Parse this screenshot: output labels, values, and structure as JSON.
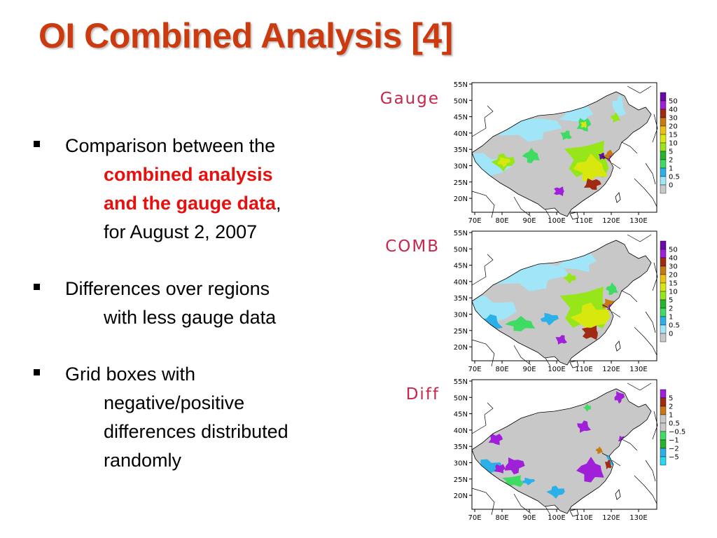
{
  "slide": {
    "title": "OI Combined Analysis [4]",
    "bullets": [
      {
        "first": "Comparison between the",
        "lines": [
          {
            "parts": [
              {
                "text": "combined analysis",
                "hl": true
              }
            ]
          },
          {
            "parts": [
              {
                "text": "and the gauge data",
                "hl": true
              },
              {
                "text": ",",
                "hl": false
              }
            ]
          },
          {
            "parts": [
              {
                "text": "for August 2, 2007",
                "hl": false
              }
            ]
          }
        ]
      },
      {
        "first": "Differences over regions",
        "lines": [
          {
            "parts": [
              {
                "text": "with less gauge data",
                "hl": false
              }
            ]
          }
        ]
      },
      {
        "first": "Grid boxes with",
        "lines": [
          {
            "parts": [
              {
                "text": "negative/positive",
                "hl": false
              }
            ]
          },
          {
            "parts": [
              {
                "text": "differences distributed",
                "hl": false
              }
            ]
          },
          {
            "parts": [
              {
                "text": "randomly",
                "hl": false
              }
            ]
          }
        ]
      }
    ]
  },
  "colors": {
    "title": "#cc3a10",
    "highlight": "#e8100e",
    "panel_label": "#c8264b",
    "land_gray": "#c8c8c8"
  },
  "map": {
    "lat_labels": [
      "55N",
      "50N",
      "45N",
      "40N",
      "35N",
      "30N",
      "25N",
      "20N"
    ],
    "lon_labels": [
      "70E",
      "80E",
      "90E",
      "100E",
      "110E",
      "120E",
      "130E"
    ]
  },
  "panels": [
    {
      "label": "Gauge",
      "legend": {
        "colors": [
          "#6a0aa8",
          "#a01fd8",
          "#a02a12",
          "#c87a12",
          "#eec012",
          "#d8e80e",
          "#96e61a",
          "#26b42a",
          "#3edc62",
          "#2cb0e8",
          "#a0e6f8",
          "#c8c8c8"
        ],
        "labels": [
          "50",
          "40",
          "30",
          "20",
          "15",
          "10",
          "5",
          "2",
          "1",
          "0.5",
          "0"
        ]
      }
    },
    {
      "label": "COMB",
      "legend": {
        "colors": [
          "#6a0aa8",
          "#a01fd8",
          "#a02a12",
          "#c87a12",
          "#eec012",
          "#d8e80e",
          "#96e61a",
          "#26b42a",
          "#3edc62",
          "#2cb0e8",
          "#a0e6f8",
          "#c8c8c8"
        ],
        "labels": [
          "50",
          "40",
          "30",
          "20",
          "15",
          "10",
          "5",
          "2",
          "1",
          "0.5",
          "0"
        ]
      }
    },
    {
      "label": "Diff",
      "legend": {
        "colors": [
          "#a01fd8",
          "#a02a12",
          "#c87a12",
          "#c8c8c8",
          "#c8c8c8",
          "#3edc62",
          "#26b42a",
          "#2cb0e8",
          "#26d8f0"
        ],
        "labels": [
          "5",
          "2",
          "1",
          "0.5",
          "−0.5",
          "−1",
          "−2",
          "−5"
        ]
      }
    }
  ]
}
